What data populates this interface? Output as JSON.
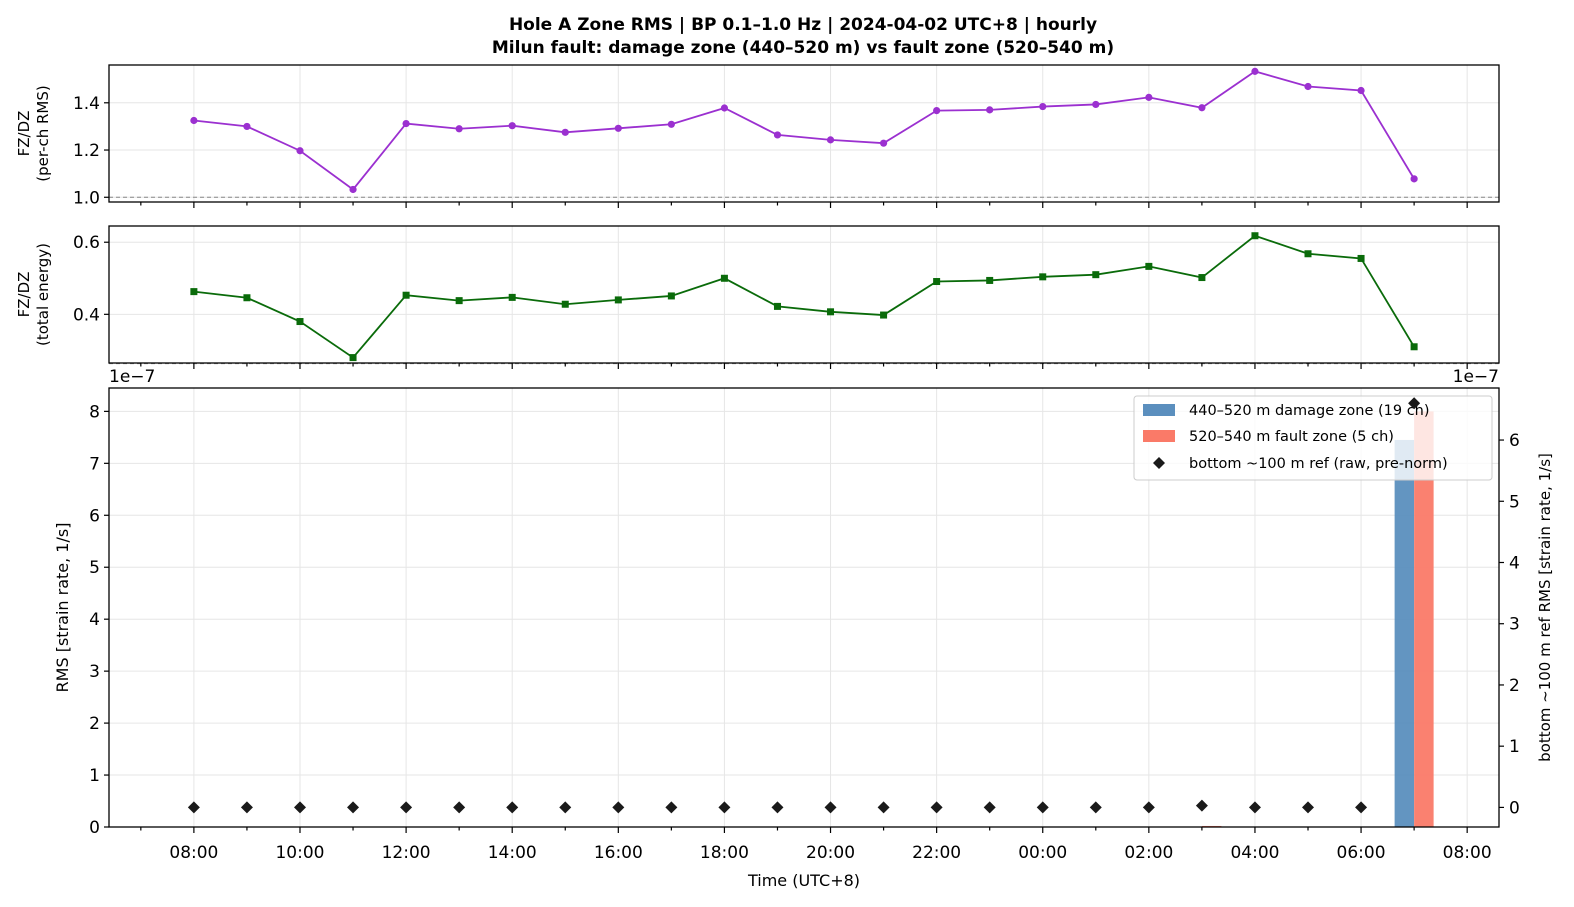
{
  "title_line1": "Hole A Zone RMS  |  BP 0.1–1.0 Hz  |  2024-04-02 UTC+8  |  hourly",
  "title_line2": "Milun fault: damage zone (440–520 m) vs fault zone (520–540 m)",
  "chart_data": [
    {
      "type": "line",
      "panel": "top",
      "ylabel": [
        "FZ/DZ",
        "(per-ch RMS)"
      ],
      "ylim": [
        0.98,
        1.56
      ],
      "yticks": [
        "1.0",
        "1.2",
        "1.4"
      ],
      "ytick_values": [
        1.0,
        1.2,
        1.4
      ],
      "reference_line": 1.0,
      "color": "#9b30d0",
      "marker": "circle",
      "x_hours": [
        8,
        9,
        10,
        11,
        12,
        13,
        14,
        15,
        16,
        17,
        18,
        19,
        20,
        21,
        22,
        23,
        24,
        25,
        26,
        27,
        28,
        29,
        30,
        31
      ],
      "values": [
        1.325,
        1.3,
        1.197,
        1.033,
        1.312,
        1.29,
        1.303,
        1.275,
        1.292,
        1.309,
        1.378,
        1.264,
        1.243,
        1.229,
        1.367,
        1.37,
        1.384,
        1.393,
        1.423,
        1.379,
        1.533,
        1.469,
        1.452,
        1.078
      ],
      "grid": true
    },
    {
      "type": "line",
      "panel": "middle",
      "ylabel": [
        "FZ/DZ",
        "(total energy)"
      ],
      "ylim": [
        0.265,
        0.645
      ],
      "yticks": [
        "0.4",
        "0.6"
      ],
      "ytick_values": [
        0.4,
        0.6
      ],
      "reference_line": 0.2632,
      "color": "#0a6b0a",
      "marker": "square",
      "x_hours": [
        8,
        9,
        10,
        11,
        12,
        13,
        14,
        15,
        16,
        17,
        18,
        19,
        20,
        21,
        22,
        23,
        24,
        25,
        26,
        27,
        28,
        29,
        30,
        31
      ],
      "values": [
        0.463,
        0.446,
        0.38,
        0.28,
        0.453,
        0.438,
        0.447,
        0.428,
        0.44,
        0.451,
        0.5,
        0.422,
        0.407,
        0.398,
        0.491,
        0.494,
        0.504,
        0.51,
        0.533,
        0.502,
        0.618,
        0.568,
        0.555,
        0.31
      ],
      "grid": true
    },
    {
      "type": "bar",
      "panel": "bottom",
      "xlabel": "Time (UTC+8)",
      "ylabel_left": "RMS  [strain rate, 1/s]",
      "ylabel_right": "bottom ~100 m ref RMS  [strain rate, 1/s]",
      "offset_left": "1e−7",
      "offset_right": "1e−7",
      "ylim_left": [
        0,
        8.45
      ],
      "ylim_right": [
        -0.32,
        6.85
      ],
      "yticks_left": [
        "0",
        "1",
        "2",
        "3",
        "4",
        "5",
        "6",
        "7",
        "8"
      ],
      "yticks_right": [
        "0",
        "1",
        "2",
        "3",
        "4",
        "5",
        "6"
      ],
      "xticks": [
        "08:00",
        "10:00",
        "12:00",
        "14:00",
        "16:00",
        "18:00",
        "20:00",
        "22:00",
        "00:00",
        "02:00",
        "04:00",
        "06:00",
        "08:00"
      ],
      "xlim_hours": [
        6.4,
        32.6
      ],
      "grid": true,
      "series": [
        {
          "name": "440–520 m  damage zone (19 ch)",
          "color": "#5b8fbe",
          "x_hours": [
            8,
            9,
            10,
            11,
            12,
            13,
            14,
            15,
            16,
            17,
            18,
            19,
            20,
            21,
            22,
            23,
            24,
            25,
            26,
            27,
            28,
            29,
            30,
            31
          ],
          "values": [
            0.002,
            0.002,
            0.002,
            0.002,
            0.002,
            0.002,
            0.002,
            0.002,
            0.002,
            0.002,
            0.002,
            0.002,
            0.002,
            0.002,
            0.002,
            0.002,
            0.002,
            0.002,
            0.002,
            0.003,
            0.002,
            0.002,
            0.002,
            7.45
          ]
        },
        {
          "name": "520–540 m  fault zone (5 ch)",
          "color": "#fa7a68",
          "x_hours": [
            8,
            9,
            10,
            11,
            12,
            13,
            14,
            15,
            16,
            17,
            18,
            19,
            20,
            21,
            22,
            23,
            24,
            25,
            26,
            27,
            28,
            29,
            30,
            31
          ],
          "values": [
            0.002,
            0.002,
            0.002,
            0.002,
            0.002,
            0.002,
            0.002,
            0.002,
            0.002,
            0.002,
            0.002,
            0.002,
            0.002,
            0.002,
            0.002,
            0.002,
            0.002,
            0.002,
            0.002,
            0.02,
            0.002,
            0.002,
            0.002,
            8.0
          ]
        },
        {
          "name": "bottom ~100 m ref (raw, pre-norm)",
          "type": "scatter",
          "axis": "right",
          "color": "#1a1a1a",
          "marker": "diamond",
          "x_hours": [
            8,
            9,
            10,
            11,
            12,
            13,
            14,
            15,
            16,
            17,
            18,
            19,
            20,
            21,
            22,
            23,
            24,
            25,
            26,
            27,
            28,
            29,
            30,
            31
          ],
          "values": [
            0.0,
            0.0,
            0.0,
            0.0,
            0.0,
            0.0,
            0.0,
            0.0,
            0.0,
            0.0,
            0.0,
            0.0,
            0.0,
            0.0,
            0.0,
            0.0,
            0.0,
            0.0,
            0.0,
            0.03,
            0.0,
            0.0,
            0.0,
            6.6
          ]
        }
      ],
      "legend_position": "upper right"
    }
  ]
}
